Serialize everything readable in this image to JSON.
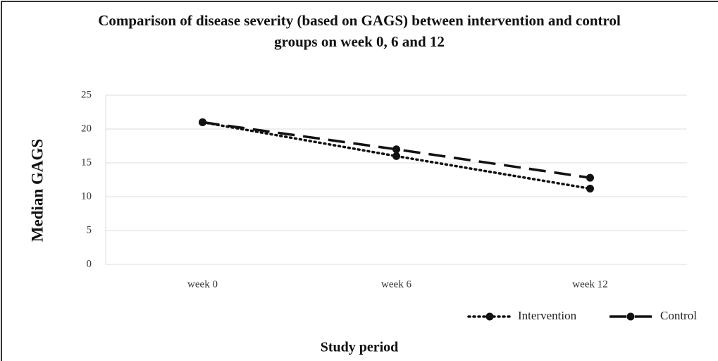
{
  "chart_data": {
    "type": "line",
    "title": "Comparison of disease severity (based on GAGS) between intervention and control groups on week 0, 6 and 12",
    "categories": [
      "week 0",
      "week 6",
      "week 12"
    ],
    "series": [
      {
        "name": "Intervention",
        "color": "#111111",
        "dash": "dotted",
        "values": [
          21,
          16,
          11.2
        ]
      },
      {
        "name": "Control",
        "color": "#111111",
        "dash": "dashed",
        "values": [
          21,
          17,
          12.8
        ]
      }
    ],
    "x_label": "Study period",
    "y_label": "Median GAGS",
    "ylim": [
      0,
      25
    ],
    "yticks": [
      0,
      5,
      10,
      15,
      20,
      25
    ],
    "grid": true,
    "legend": "bottom-right"
  }
}
